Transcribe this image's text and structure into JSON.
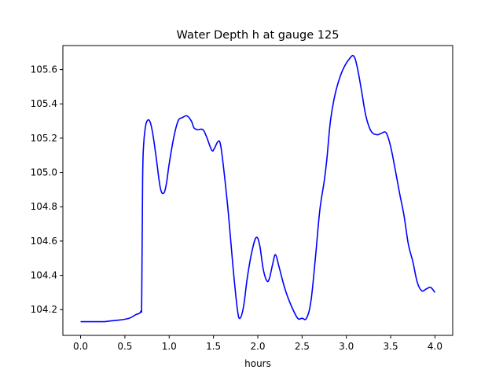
{
  "chart_data": {
    "type": "line",
    "title": "Water Depth h at gauge 125",
    "xlabel": "hours",
    "ylabel": "",
    "xlim": [
      -0.2,
      4.2
    ],
    "ylim": [
      104.05,
      105.74
    ],
    "grid": false,
    "x_ticks": [
      0.0,
      0.5,
      1.0,
      1.5,
      2.0,
      2.5,
      3.0,
      3.5,
      4.0
    ],
    "x_tick_labels": [
      "0.0",
      "0.5",
      "1.0",
      "1.5",
      "2.0",
      "2.5",
      "3.0",
      "3.5",
      "4.0"
    ],
    "y_ticks": [
      104.2,
      104.4,
      104.6,
      104.8,
      105.0,
      105.2,
      105.4,
      105.6
    ],
    "y_tick_labels": [
      "104.2",
      "104.4",
      "104.6",
      "104.8",
      "105.0",
      "105.2",
      "105.4",
      "105.6"
    ],
    "series": [
      {
        "color": "#0000ff",
        "x": [
          0.0,
          0.02,
          0.1,
          0.2,
          0.27,
          0.35,
          0.45,
          0.55,
          0.62,
          0.68,
          0.69,
          0.7,
          0.71,
          0.73,
          0.75,
          0.78,
          0.81,
          0.85,
          0.9,
          0.94,
          0.97,
          1.0,
          1.05,
          1.1,
          1.15,
          1.2,
          1.25,
          1.28,
          1.32,
          1.38,
          1.42,
          1.48,
          1.51,
          1.55,
          1.58,
          1.62,
          1.67,
          1.72,
          1.77,
          1.8,
          1.84,
          1.88,
          1.93,
          1.98,
          2.02,
          2.06,
          2.1,
          2.13,
          2.17,
          2.2,
          2.24,
          2.28,
          2.32,
          2.38,
          2.45,
          2.5,
          2.55,
          2.6,
          2.65,
          2.7,
          2.75,
          2.78,
          2.82,
          2.87,
          2.93,
          2.98,
          3.03,
          3.08,
          3.12,
          3.17,
          3.22,
          3.28,
          3.35,
          3.4,
          3.45,
          3.5,
          3.55,
          3.6,
          3.65,
          3.7,
          3.75,
          3.8,
          3.85,
          3.9,
          3.95,
          4.0
        ],
        "y": [
          104.13,
          104.13,
          104.13,
          104.13,
          104.13,
          104.135,
          104.14,
          104.15,
          104.17,
          104.19,
          104.27,
          104.95,
          105.15,
          105.26,
          105.3,
          105.3,
          105.24,
          105.1,
          104.91,
          104.88,
          104.94,
          105.05,
          105.2,
          105.3,
          105.32,
          105.33,
          105.3,
          105.26,
          105.25,
          105.25,
          105.21,
          105.13,
          105.14,
          105.18,
          105.16,
          105.0,
          104.75,
          104.45,
          104.2,
          104.15,
          104.22,
          104.38,
          104.53,
          104.62,
          104.58,
          104.44,
          104.37,
          104.38,
          104.47,
          104.52,
          104.45,
          104.37,
          104.3,
          104.22,
          104.15,
          104.15,
          104.15,
          104.25,
          104.5,
          104.78,
          104.95,
          105.08,
          105.3,
          105.45,
          105.56,
          105.62,
          105.66,
          105.68,
          105.62,
          105.48,
          105.33,
          105.24,
          105.22,
          105.23,
          105.23,
          105.15,
          105.02,
          104.88,
          104.75,
          104.58,
          104.48,
          104.36,
          104.31,
          104.32,
          104.33,
          104.3
        ]
      }
    ]
  }
}
